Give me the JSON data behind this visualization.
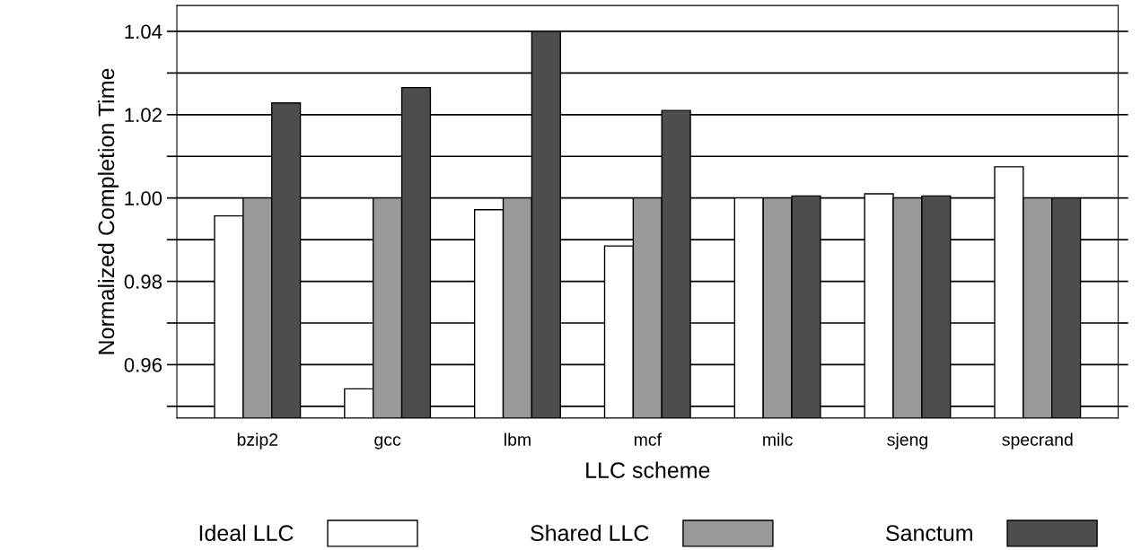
{
  "chart_data": {
    "type": "bar",
    "xlabel": "LLC scheme",
    "ylabel": "Normalized Completion Time",
    "categories": [
      "bzip2",
      "gcc",
      "lbm",
      "mcf",
      "milc",
      "sjeng",
      "specrand"
    ],
    "series": [
      {
        "name": "Ideal LLC",
        "color": "#ffffff",
        "values": [
          0.9957,
          0.9542,
          0.9972,
          0.9885,
          1.0,
          1.001,
          1.0075
        ]
      },
      {
        "name": "Shared LLC",
        "color": "#999999",
        "values": [
          1.0,
          1.0,
          1.0,
          1.0,
          1.0,
          1.0,
          1.0
        ]
      },
      {
        "name": "Sanctum",
        "color": "#4d4d4d",
        "values": [
          1.0228,
          1.0265,
          1.04,
          1.021,
          1.0005,
          1.0005,
          1.0
        ]
      }
    ],
    "ylim": [
      0.9472,
      1.0462
    ],
    "yticks": [
      {
        "value": 0.95,
        "label": null
      },
      0.96,
      {
        "value": 0.97,
        "label": null
      },
      0.98,
      {
        "value": 0.99,
        "label": null
      },
      {
        "value": 1.0,
        "label": "1.00"
      },
      {
        "value": 1.01,
        "label": null
      },
      1.02,
      {
        "value": 1.03,
        "label": null
      },
      1.04
    ],
    "grid": "y",
    "legend": "bottom"
  }
}
